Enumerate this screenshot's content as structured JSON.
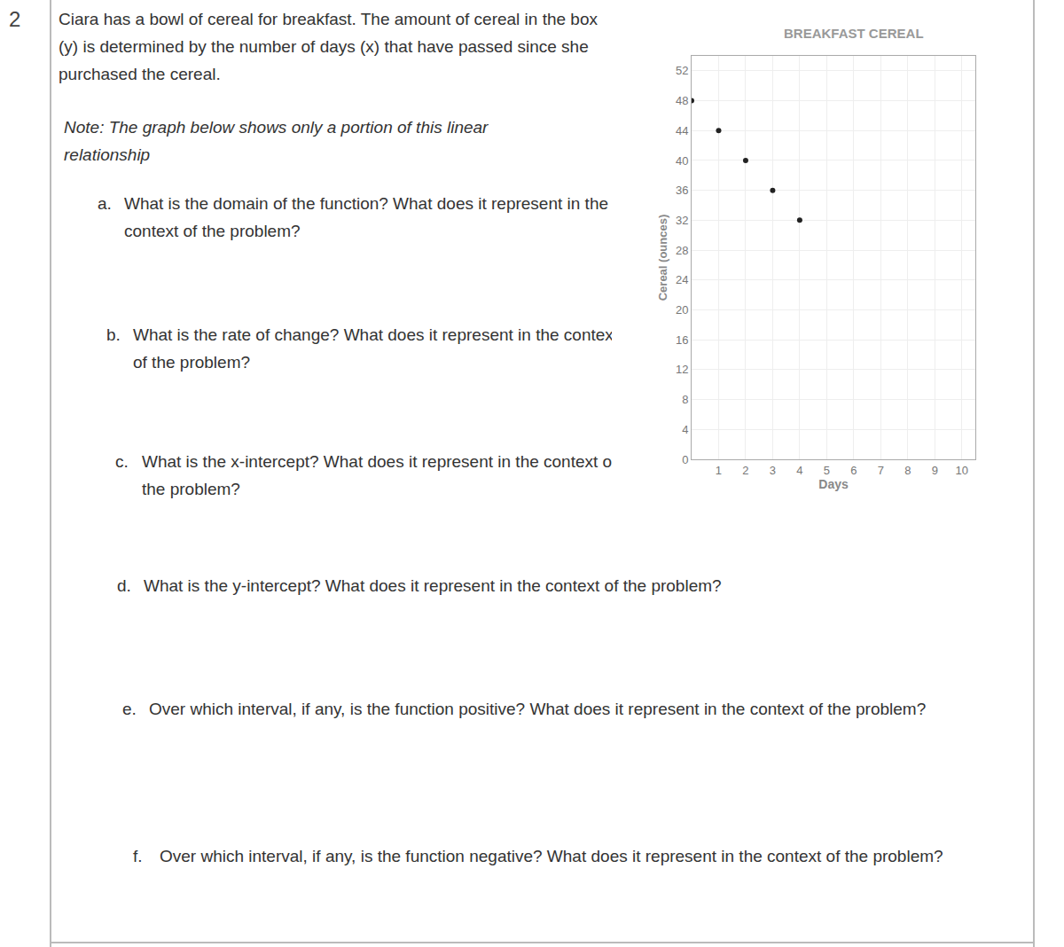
{
  "number": "2",
  "intro": "Ciara has a bowl of cereal for breakfast. The amount of cereal in the box (y) is determined by the number of days (x) that have passed since she purchased the cereal.",
  "note": "Note: The graph below shows only a portion of this linear relationship",
  "questions": [
    {
      "label": "a.",
      "text": "What is the domain of the function? What does it represent in the context of the problem?"
    },
    {
      "label": "b.",
      "text": "What is the rate of change? What does it represent in the context of the problem?"
    },
    {
      "label": "c.",
      "text": "What is the x-intercept? What does it represent in the context of the problem?"
    },
    {
      "label": "d.",
      "text": "What is the y-intercept? What does it represent in the context of the problem?"
    },
    {
      "label": "e.",
      "text": "Over which interval, if any, is the function positive? What does it represent in the context of the problem?"
    },
    {
      "label": "f.",
      "text": "Over which interval, if any, is the function negative? What does it represent in the context of the problem?"
    }
  ],
  "chart_data": {
    "type": "scatter",
    "title": "BREAKFAST CEREAL",
    "x_label": "Days",
    "y_label": "Cereal (ounces)",
    "x": [
      0,
      1,
      2,
      3,
      4
    ],
    "values": [
      48,
      44,
      40,
      36,
      32
    ],
    "color": "#222222",
    "marker": "circle",
    "xlim": [
      0,
      10.5
    ],
    "xticks": [
      1,
      2,
      3,
      4,
      5,
      6,
      7,
      8,
      9,
      10
    ],
    "ylim": [
      0,
      54
    ],
    "yticks": [
      0,
      4,
      8,
      12,
      16,
      20,
      24,
      28,
      32,
      36,
      40,
      44,
      48,
      52
    ],
    "grid": true
  }
}
